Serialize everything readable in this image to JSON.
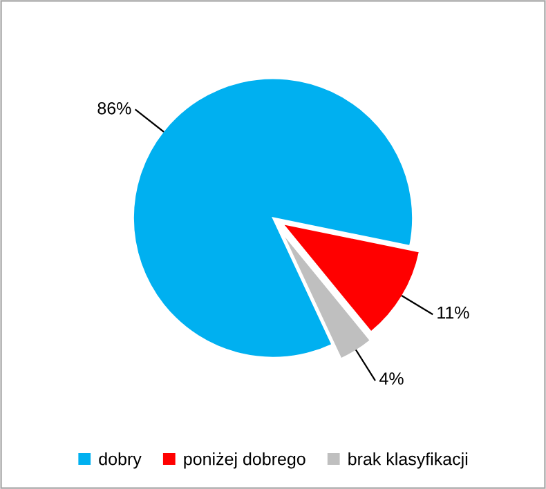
{
  "chart_data": {
    "type": "pie",
    "categories": [
      "dobry",
      "poniżej dobrego",
      "brak klasyfikacji"
    ],
    "values": [
      86,
      11,
      4
    ],
    "colors": [
      "#00b0f0",
      "#ff0000",
      "#bfbfbf"
    ],
    "value_labels": [
      "86%",
      "11%",
      "4%"
    ],
    "legend": "bottom"
  }
}
